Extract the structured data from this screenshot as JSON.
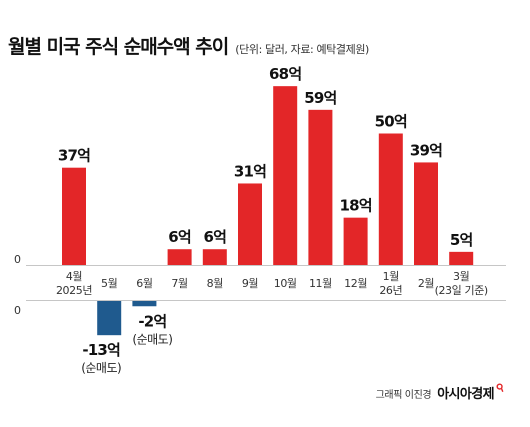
{
  "title": "월별 미국 주식 순매수액 추이",
  "subtitle": "(단위: 달러, 자료: 예탁결제원)",
  "footer": {
    "credit": "그래픽 이진경",
    "brand": "아시아경제"
  },
  "colors": {
    "positive": "#e32628",
    "negative": "#1f5a8e",
    "axis": "#c6c6c6",
    "brand_mark": "#e32628"
  },
  "chart_data": {
    "type": "bar",
    "categories": [
      [
        "4월",
        "2025년"
      ],
      [
        "5월"
      ],
      [
        "6월"
      ],
      [
        "7월"
      ],
      [
        "8월"
      ],
      [
        "9월"
      ],
      [
        "10월"
      ],
      [
        "11월"
      ],
      [
        "12월"
      ],
      [
        "1월",
        "26년"
      ],
      [
        "2월"
      ],
      [
        "3월",
        "(23일 기준)"
      ]
    ],
    "values": [
      37,
      -13,
      -2,
      6,
      6,
      31,
      68,
      59,
      18,
      50,
      39,
      5
    ],
    "data_labels": [
      "37억",
      "-13억",
      "-2억",
      "6억",
      "6억",
      "31억",
      "68억",
      "59억",
      "18억",
      "50억",
      "39억",
      "5억"
    ],
    "notes": [
      "",
      "(순매도)",
      "(순매도)",
      "",
      "",
      "",
      "",
      "",
      "",
      "",
      "",
      ""
    ],
    "zero_label": "0",
    "xlabel": "",
    "ylabel": "",
    "ylim": [
      -13,
      68
    ],
    "grid": false,
    "legend": "none"
  }
}
